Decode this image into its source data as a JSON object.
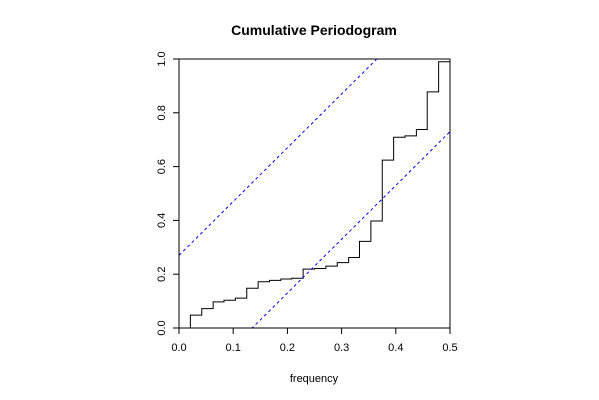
{
  "chart_data": {
    "type": "line",
    "title": "Cumulative Periodogram",
    "xlabel": "frequency",
    "ylabel": "",
    "xlim": [
      0,
      0.5
    ],
    "ylim": [
      0,
      1
    ],
    "x_ticks": [
      0.0,
      0.1,
      0.2,
      0.3,
      0.4,
      0.5
    ],
    "x_tick_labels": [
      "0.0",
      "0.1",
      "0.2",
      "0.3",
      "0.4",
      "0.5"
    ],
    "y_ticks": [
      0.0,
      0.2,
      0.4,
      0.6,
      0.8,
      1.0
    ],
    "y_tick_labels": [
      "0.0",
      "0.2",
      "0.4",
      "0.6",
      "0.8",
      "1.0"
    ],
    "grid": false,
    "legend": "none",
    "series": [
      {
        "style": "step",
        "color": "#000000",
        "x": [
          0.0,
          0.021,
          0.042,
          0.063,
          0.083,
          0.104,
          0.125,
          0.146,
          0.167,
          0.188,
          0.208,
          0.229,
          0.25,
          0.271,
          0.292,
          0.313,
          0.333,
          0.354,
          0.375,
          0.396,
          0.417,
          0.438,
          0.458,
          0.479,
          0.5
        ],
        "y": [
          0.0,
          0.048,
          0.072,
          0.097,
          0.103,
          0.111,
          0.148,
          0.172,
          0.177,
          0.182,
          0.185,
          0.219,
          0.221,
          0.23,
          0.243,
          0.262,
          0.322,
          0.398,
          0.624,
          0.709,
          0.714,
          0.738,
          0.878,
          0.99,
          0.995
        ]
      },
      {
        "style": "dashed",
        "color": "#0000ff",
        "x": [
          0.0,
          0.5
        ],
        "y": [
          0.27,
          1.27
        ]
      },
      {
        "style": "dashed",
        "color": "#0000ff",
        "x": [
          0.0,
          0.5
        ],
        "y": [
          -0.27,
          0.73
        ]
      }
    ]
  }
}
